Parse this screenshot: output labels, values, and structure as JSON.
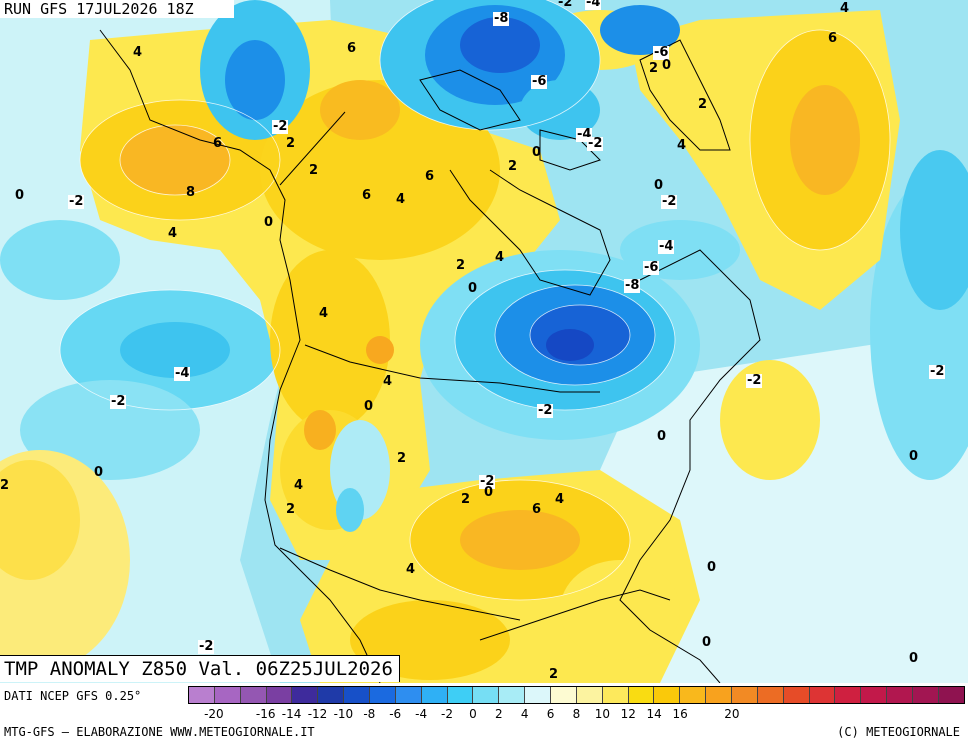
{
  "header": {
    "run_label": "RUN GFS 17JUL2026 18Z"
  },
  "map": {
    "title": "TMP ANOMALY Z850 Val. 06Z25JUL2026",
    "contour_labels": [
      "-8",
      "-2",
      "-4",
      "4",
      "4",
      "6",
      "-6",
      "2",
      "0",
      "6",
      "-6",
      "2",
      "-2",
      "6",
      "2",
      "-4",
      "-2",
      "4",
      "0",
      "-2",
      "8",
      "2",
      "6",
      "4",
      "6",
      "2",
      "0",
      "0",
      "-2",
      "4",
      "0",
      "4",
      "-4",
      "2",
      "-6",
      "4",
      "0",
      "-8",
      "4",
      "-4",
      "0",
      "-2",
      "-2",
      "0",
      "-2",
      "0",
      "2",
      "-2",
      "0",
      "2",
      "2",
      "4",
      "6",
      "4",
      "2",
      "-2",
      "4",
      "0",
      "0",
      "0",
      "-2",
      "2",
      "0"
    ]
  },
  "legend": {
    "source": "DATI NCEP GFS 0.25°",
    "colors": [
      "#b97fcf",
      "#a766c2",
      "#9457b2",
      "#7a3fa2",
      "#3e2b9c",
      "#1f3aa8",
      "#1750c8",
      "#1b6ae0",
      "#2e8ef0",
      "#2fb0f5",
      "#3ecef5",
      "#76def4",
      "#a8ecf6",
      "#dcf7fa",
      "#fdfbd2",
      "#fcf3a0",
      "#fde95c",
      "#f9dc12",
      "#fac90a",
      "#f9b81c",
      "#f8a21e",
      "#f28a24",
      "#ec6c24",
      "#e64c28",
      "#dd3434",
      "#cf2040",
      "#c2194a",
      "#b1174f",
      "#a21652",
      "#8f1350"
    ],
    "ticks": [
      "-20",
      "-16",
      "-14",
      "-12",
      "-10",
      "-8",
      "-6",
      "-4",
      "-2",
      "0",
      "2",
      "4",
      "6",
      "8",
      "10",
      "12",
      "14",
      "16",
      "20"
    ]
  },
  "footer": {
    "credit_left": "MTG-GFS – ELABORAZIONE WWW.METEOGIORNALE.IT",
    "credit_right": "(C) METEOGIORNALE"
  }
}
